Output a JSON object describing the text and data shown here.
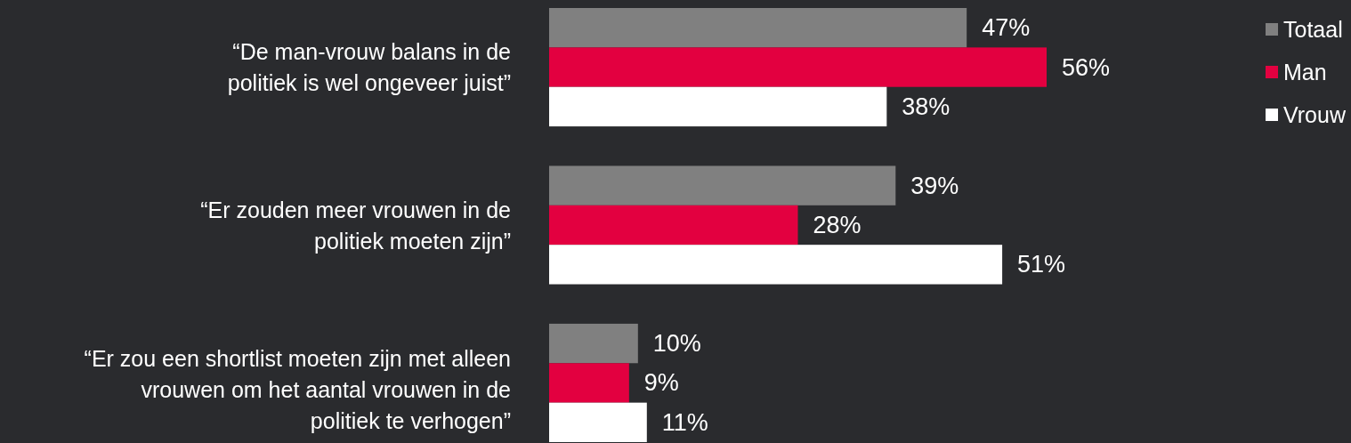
{
  "chart_data": {
    "type": "bar",
    "orientation": "horizontal",
    "tick_labels": "y",
    "legend": "top right",
    "categories": [
      "“De man-vrouw balans in de\npolitiek is wel ongeveer juist”",
      "“Er zouden meer vrouwen in de\npolitiek moeten zijn”",
      "“Er zou een shortlist moeten zijn met alleen\nvrouwen om het aantal vrouwen in de\npolitiek te verhogen”"
    ],
    "series": [
      {
        "name": "Totaal",
        "color": "#808080",
        "values": [
          47,
          39,
          10
        ],
        "value_labels": [
          "47%",
          "39%",
          "10%"
        ]
      },
      {
        "name": "Man",
        "color": "#e30040",
        "values": [
          56,
          28,
          9
        ],
        "value_labels": [
          "56%",
          "28%",
          "9%"
        ]
      },
      {
        "name": "Vrouw",
        "color": "#ffffff",
        "values": [
          38,
          51,
          11
        ],
        "value_labels": [
          "38%",
          "51%",
          "11%"
        ]
      }
    ]
  }
}
